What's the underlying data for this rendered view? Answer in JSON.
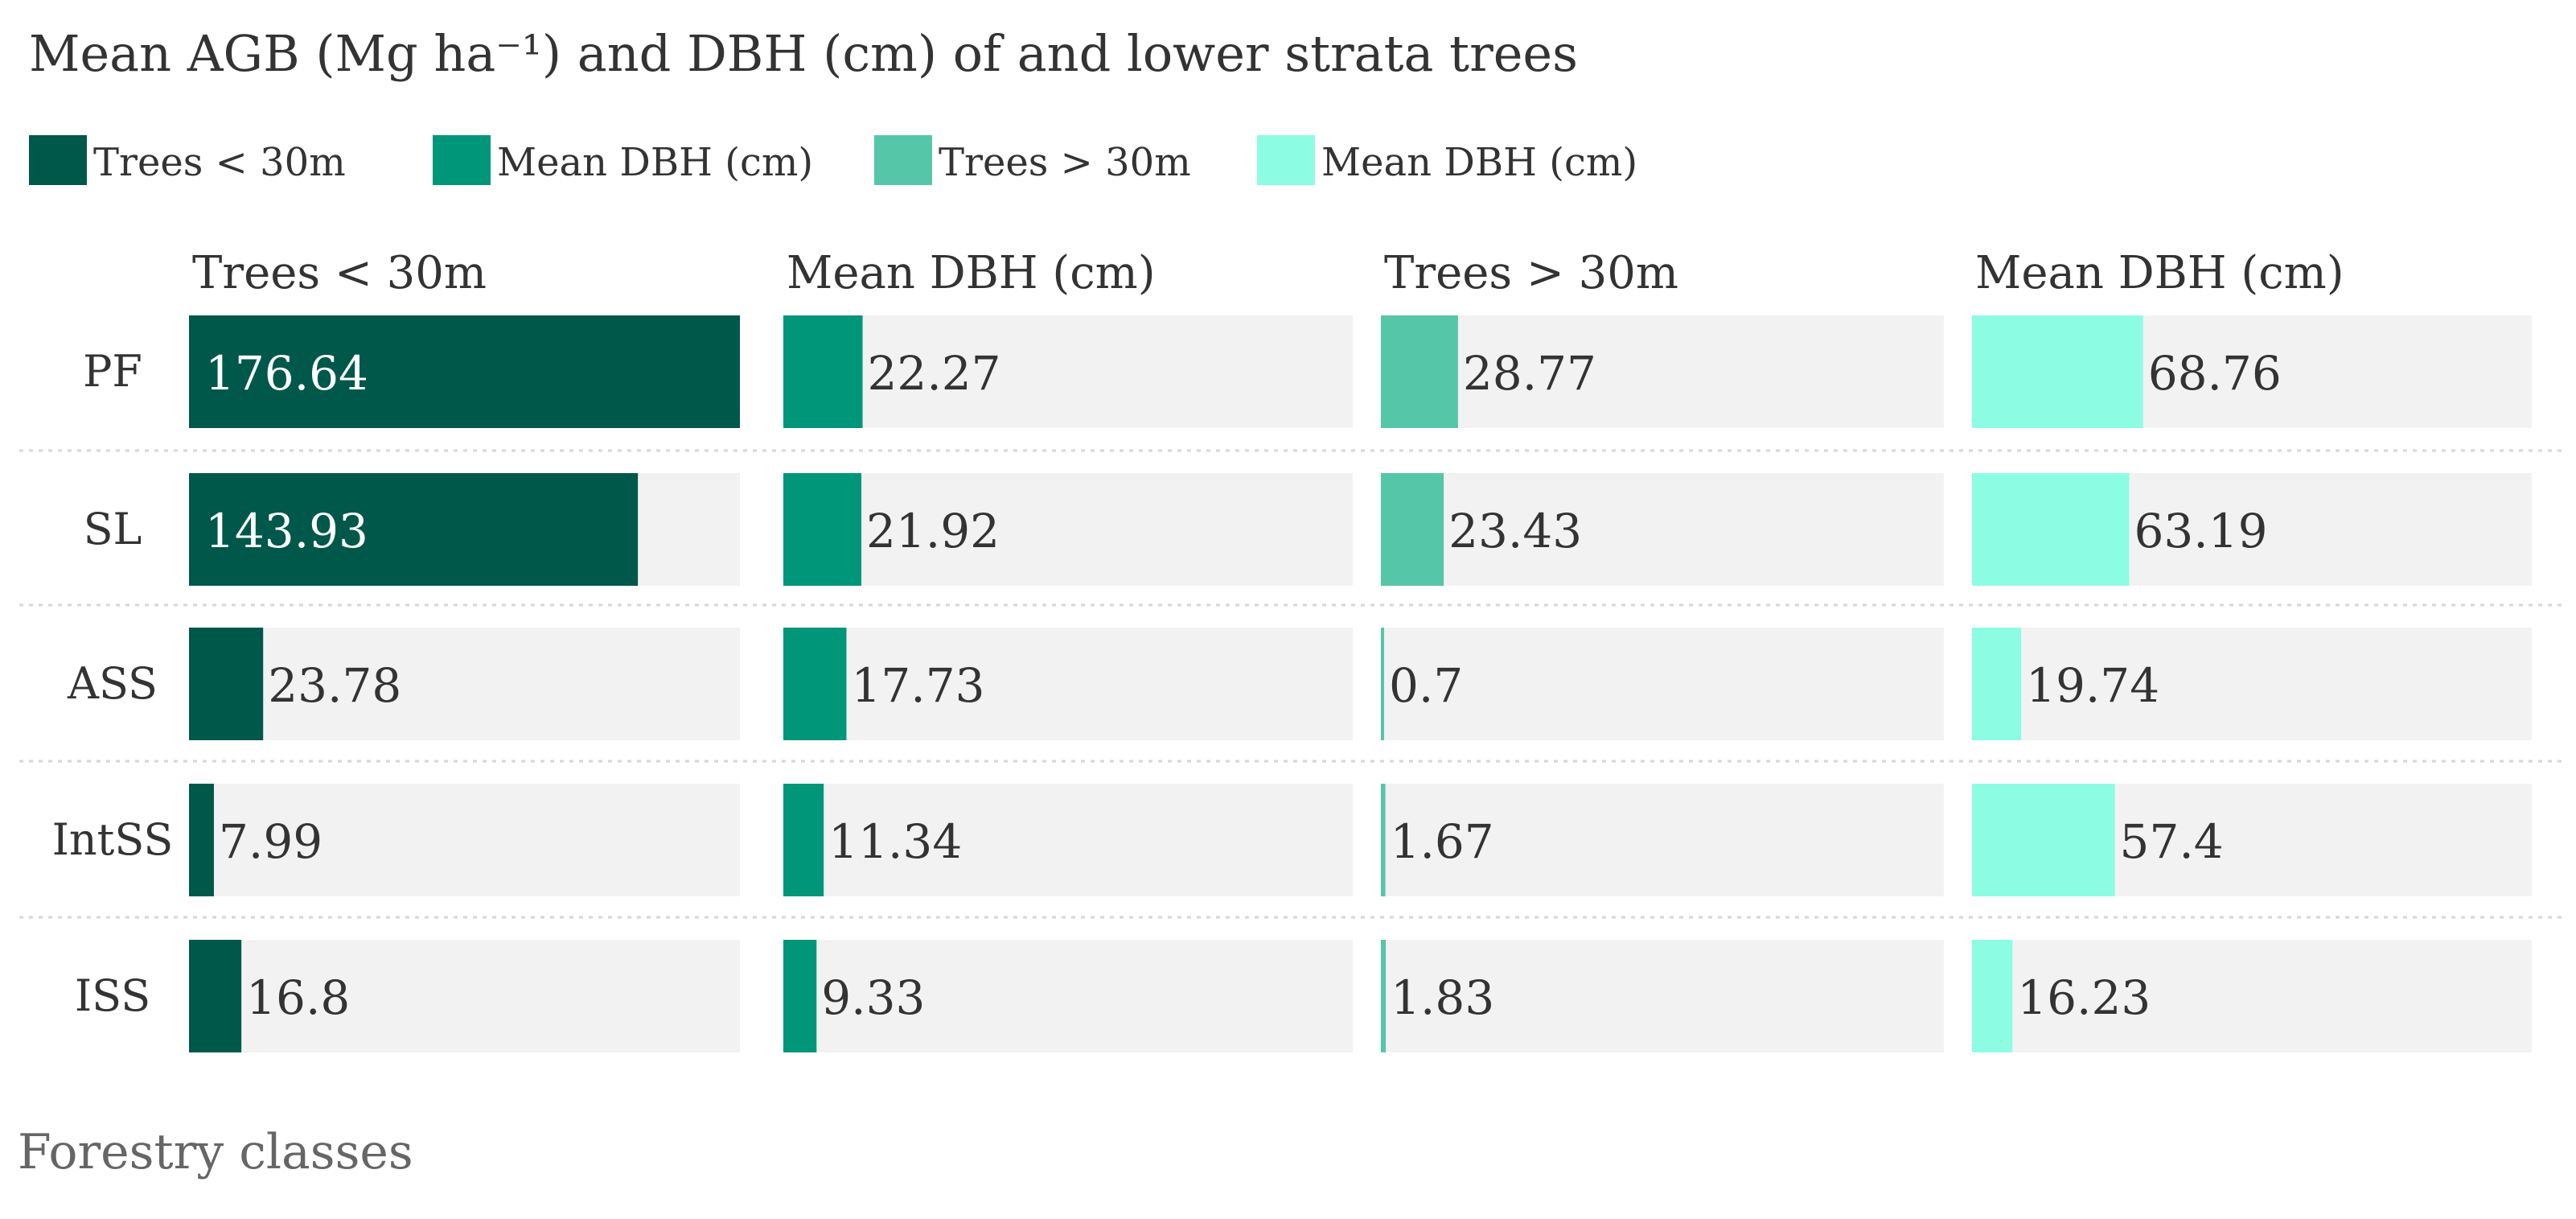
{
  "chart_data": {
    "type": "bar",
    "title": "Mean AGB (Mg ha⁻¹) and DBH (cm) of and lower strata trees",
    "footer_label": "Forestry classes",
    "categories": [
      "PF",
      "SL",
      "ASS",
      "IntSS",
      "ISS"
    ],
    "legend": [
      {
        "name": "Trees < 30m",
        "color": "#00584a"
      },
      {
        "name": "Mean DBH (cm)",
        "color": "#00967a"
      },
      {
        "name": "Trees > 30m",
        "color": "#56c6a8"
      },
      {
        "name": "Mean DBH (cm)",
        "color": "#8cfde3"
      }
    ],
    "series": [
      {
        "name": "Trees < 30m",
        "values": [
          176.64,
          143.93,
          23.78,
          7.99,
          16.8
        ],
        "max": 176.64
      },
      {
        "name": "Mean DBH (cm)",
        "values": [
          22.27,
          21.92,
          17.73,
          11.34,
          9.33
        ],
        "max": 160
      },
      {
        "name": "Trees > 30m",
        "values": [
          28.77,
          23.43,
          0.7,
          1.67,
          1.83
        ],
        "max": 210
      },
      {
        "name": "Mean DBH (cm)",
        "values": [
          68.76,
          63.19,
          19.74,
          57.4,
          16.23
        ],
        "max": 225
      }
    ],
    "track_color": "#f2f2f2",
    "grid": false,
    "legend_position": "top-left"
  }
}
